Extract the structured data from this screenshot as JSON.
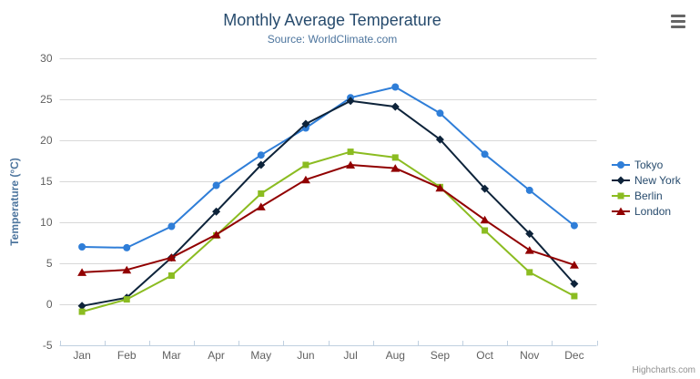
{
  "chart": {
    "credit": "Highcharts.com",
    "context_menu_icon": "hamburger-icon"
  },
  "colors": {
    "background": "#ffffff",
    "title": "#274b6d",
    "subtitle": "#4d759e",
    "axis_title": "#4d759e",
    "axis_label": "#606060",
    "grid_line": "#d8d8d8",
    "axis_line": "#c0d0e0",
    "legend_text": "#274b6d",
    "credit_text": "#909090",
    "menu_icon": "#666666"
  },
  "chart_data": {
    "type": "line",
    "title": "Monthly Average Temperature",
    "subtitle": "Source: WorldClimate.com",
    "xlabel": "",
    "ylabel": "Temperature (°C)",
    "ylim": [
      -5,
      30
    ],
    "yticks": [
      -5,
      0,
      5,
      10,
      15,
      20,
      25,
      30
    ],
    "grid": true,
    "legend_position": "right",
    "categories": [
      "Jan",
      "Feb",
      "Mar",
      "Apr",
      "May",
      "Jun",
      "Jul",
      "Aug",
      "Sep",
      "Oct",
      "Nov",
      "Dec"
    ],
    "series": [
      {
        "name": "Tokyo",
        "color": "#2f7ed8",
        "marker": "circle",
        "values": [
          7.0,
          6.9,
          9.5,
          14.5,
          18.2,
          21.5,
          25.2,
          26.5,
          23.3,
          18.3,
          13.9,
          9.6
        ]
      },
      {
        "name": "New York",
        "color": "#0d233a",
        "marker": "diamond",
        "values": [
          -0.2,
          0.8,
          5.7,
          11.3,
          17.0,
          22.0,
          24.8,
          24.1,
          20.1,
          14.1,
          8.6,
          2.5
        ]
      },
      {
        "name": "Berlin",
        "color": "#8bbc21",
        "marker": "square",
        "values": [
          -0.9,
          0.6,
          3.5,
          8.4,
          13.5,
          17.0,
          18.6,
          17.9,
          14.3,
          9.0,
          3.9,
          1.0
        ]
      },
      {
        "name": "London",
        "color": "#910000",
        "marker": "triangle",
        "values": [
          3.9,
          4.2,
          5.7,
          8.5,
          11.9,
          15.2,
          17.0,
          16.6,
          14.2,
          10.3,
          6.6,
          4.8
        ]
      }
    ]
  }
}
